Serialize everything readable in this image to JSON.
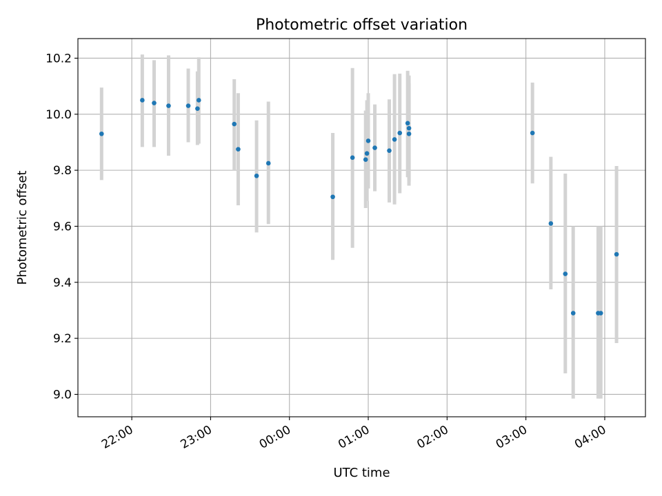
{
  "chart_data": {
    "type": "scatter",
    "title": "Photometric offset variation",
    "xlabel": "UTC time",
    "ylabel": "Photometric offset",
    "xlim": [
      "21:19",
      "04:31"
    ],
    "ylim": [
      8.92,
      10.27
    ],
    "x_ticks": [
      "22:00",
      "23:00",
      "00:00",
      "01:00",
      "02:00",
      "03:00",
      "04:00"
    ],
    "y_ticks": [
      "9.0",
      "9.2",
      "9.4",
      "9.6",
      "9.8",
      "10.0",
      "10.2"
    ],
    "grid": true,
    "colors": {
      "point": "#1f77b4",
      "errorbar": "#d3d3d3",
      "grid": "#b0b0b0"
    },
    "series": [
      {
        "points": [
          {
            "time": "21:37",
            "value": 9.93,
            "err_low": 9.765,
            "err_high": 10.095
          },
          {
            "time": "22:08",
            "value": 10.05,
            "err_low": 9.883,
            "err_high": 10.213
          },
          {
            "time": "22:17",
            "value": 10.04,
            "err_low": 9.883,
            "err_high": 10.193
          },
          {
            "time": "22:28",
            "value": 10.03,
            "err_low": 9.852,
            "err_high": 10.21
          },
          {
            "time": "22:43",
            "value": 10.03,
            "err_low": 9.9,
            "err_high": 10.163
          },
          {
            "time": "22:50",
            "value": 10.02,
            "err_low": 9.89,
            "err_high": 10.153
          },
          {
            "time": "22:51",
            "value": 10.05,
            "err_low": 9.895,
            "err_high": 10.203
          },
          {
            "time": "23:18",
            "value": 9.965,
            "err_low": 9.8,
            "err_high": 10.125
          },
          {
            "time": "23:21",
            "value": 9.875,
            "err_low": 9.675,
            "err_high": 10.075
          },
          {
            "time": "23:35",
            "value": 9.78,
            "err_low": 9.578,
            "err_high": 9.978
          },
          {
            "time": "23:44",
            "value": 9.825,
            "err_low": 9.608,
            "err_high": 10.045
          },
          {
            "time": "00:33",
            "value": 9.705,
            "err_low": 9.48,
            "err_high": 9.933
          },
          {
            "time": "00:48",
            "value": 9.845,
            "err_low": 9.523,
            "err_high": 10.165
          },
          {
            "time": "00:58",
            "value": 9.838,
            "err_low": 9.665,
            "err_high": 10.013
          },
          {
            "time": "00:59",
            "value": 9.86,
            "err_low": 9.69,
            "err_high": 10.05
          },
          {
            "time": "01:00",
            "value": 9.905,
            "err_low": 9.735,
            "err_high": 10.075
          },
          {
            "time": "01:05",
            "value": 9.88,
            "err_low": 9.725,
            "err_high": 10.035
          },
          {
            "time": "01:16",
            "value": 9.87,
            "err_low": 9.685,
            "err_high": 10.053
          },
          {
            "time": "01:20",
            "value": 9.91,
            "err_low": 9.678,
            "err_high": 10.143
          },
          {
            "time": "01:24",
            "value": 9.933,
            "err_low": 9.718,
            "err_high": 10.145
          },
          {
            "time": "01:30",
            "value": 9.968,
            "err_low": 9.775,
            "err_high": 10.155
          },
          {
            "time": "01:31",
            "value": 9.95,
            "err_low": 9.76,
            "err_high": 10.138
          },
          {
            "time": "01:31",
            "value": 9.93,
            "err_low": 9.745,
            "err_high": 10.11
          },
          {
            "time": "03:05",
            "value": 9.933,
            "err_low": 9.753,
            "err_high": 10.113
          },
          {
            "time": "03:19",
            "value": 9.61,
            "err_low": 9.375,
            "err_high": 9.848
          },
          {
            "time": "03:30",
            "value": 9.43,
            "err_low": 9.075,
            "err_high": 9.788
          },
          {
            "time": "03:36",
            "value": 9.29,
            "err_low": 8.985,
            "err_high": 9.6
          },
          {
            "time": "03:55",
            "value": 9.29,
            "err_low": 8.985,
            "err_high": 9.6
          },
          {
            "time": "03:57",
            "value": 9.29,
            "err_low": 8.985,
            "err_high": 9.6
          },
          {
            "time": "04:09",
            "value": 9.5,
            "err_low": 9.183,
            "err_high": 9.815
          }
        ]
      }
    ]
  }
}
